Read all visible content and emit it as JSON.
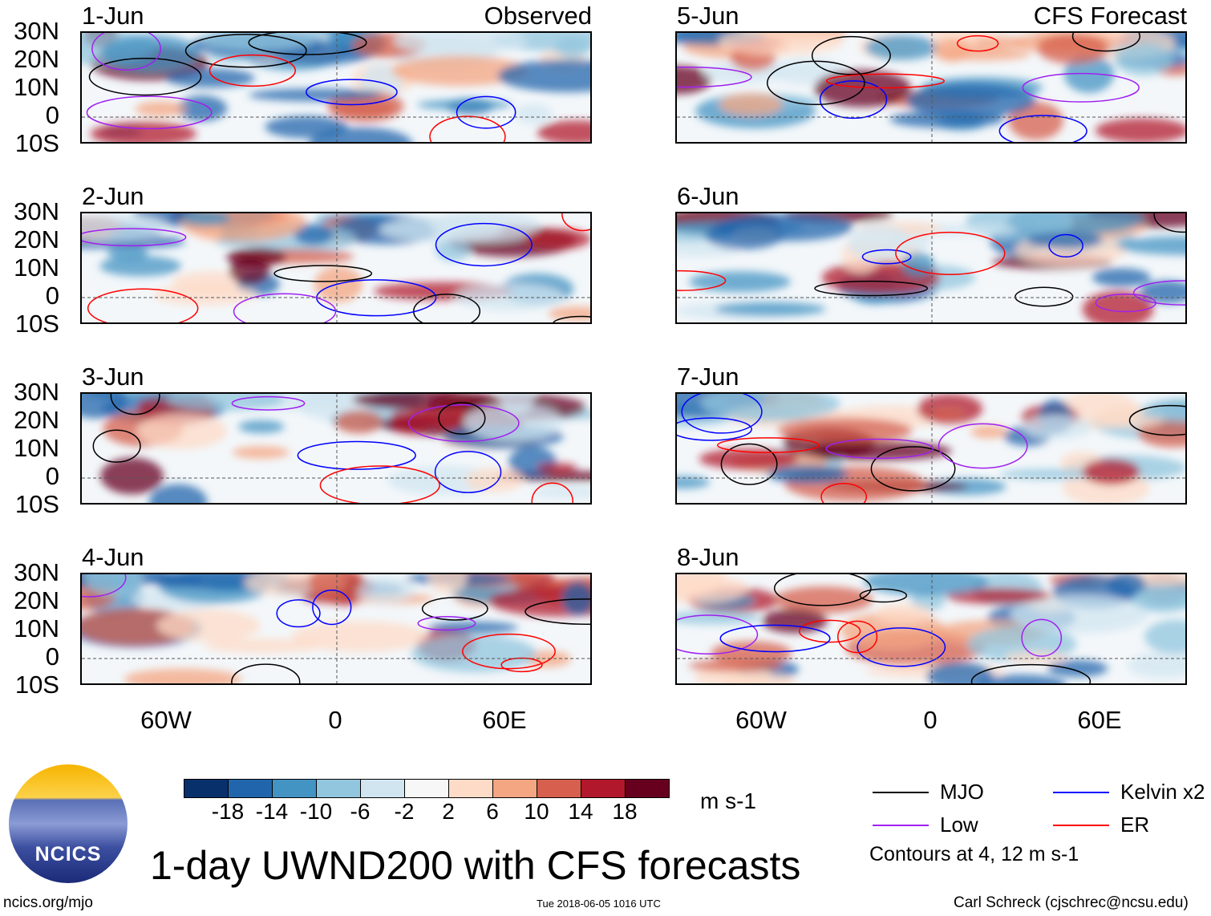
{
  "panels_left": {
    "header_label": "Observed",
    "dates": [
      "1-Jun",
      "2-Jun",
      "3-Jun",
      "4-Jun"
    ]
  },
  "panels_right": {
    "header_label": "CFS Forecast",
    "dates": [
      "5-Jun",
      "6-Jun",
      "7-Jun",
      "8-Jun"
    ]
  },
  "lat_labels": [
    "30N",
    "20N",
    "10N",
    "0",
    "10S"
  ],
  "lon_labels": [
    "60W",
    "0",
    "60E"
  ],
  "colorbar": {
    "colors": [
      "#08306b",
      "#2166ac",
      "#4393c3",
      "#92c5de",
      "#d1e5f0",
      "#f7f7f7",
      "#fddbc7",
      "#f4a582",
      "#d6604d",
      "#b2182b",
      "#67001f"
    ],
    "ticks": [
      "-18",
      "-14",
      "-10",
      "-6",
      "-2",
      "2",
      "6",
      "10",
      "14",
      "18"
    ],
    "units": "m s-1"
  },
  "legend": {
    "items": [
      {
        "label": "MJO",
        "color": "#000000"
      },
      {
        "label": "Kelvin x2",
        "color": "#0000ff"
      },
      {
        "label": "Low",
        "color": "#a020f0"
      },
      {
        "label": "ER",
        "color": "#ff0000"
      }
    ],
    "contours_note": "Contours at 4, 12 m s-1"
  },
  "logo_text": "NCICS",
  "title": "1-day UWND200 with CFS forecasts",
  "footer": {
    "url": "ncics.org/mjo",
    "timestamp": "Tue 2018-06-05 1016 UTC",
    "credit": "Carl Schreck (cjschrec@ncsu.edu)"
  }
}
